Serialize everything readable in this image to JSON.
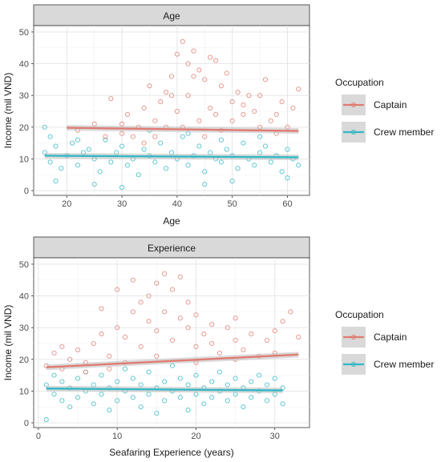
{
  "colors": {
    "captain": "#E07B72",
    "crew": "#35B7C5",
    "strip_fill": "#D9D9D9",
    "grid": "#EBEBEB"
  },
  "chart_data": [
    {
      "type": "scatter",
      "strip": "Age",
      "xlabel": "Age",
      "ylabel": "Income (mil VND)",
      "xlim": [
        14,
        64
      ],
      "ylim": [
        -1.5,
        52
      ],
      "xticks": [
        20,
        30,
        40,
        50,
        60
      ],
      "yticks": [
        0,
        10,
        20,
        30,
        40,
        50
      ],
      "legend": {
        "title": "Occupation",
        "entries": [
          "Captain",
          "Crew member"
        ],
        "placement": "right"
      },
      "series": [
        {
          "name": "Captain",
          "trend": {
            "x": [
              20,
              62
            ],
            "y": [
              19.8,
              18.8
            ]
          },
          "points": [
            [
              22,
              19
            ],
            [
              25,
              21
            ],
            [
              27,
              17
            ],
            [
              28,
              29
            ],
            [
              30,
              18
            ],
            [
              31,
              24
            ],
            [
              33,
              20
            ],
            [
              34,
              26
            ],
            [
              35,
              33
            ],
            [
              36,
              22
            ],
            [
              37,
              28
            ],
            [
              38,
              31
            ],
            [
              39,
              36
            ],
            [
              40,
              43
            ],
            [
              41,
              47
            ],
            [
              42,
              40
            ],
            [
              43,
              44
            ],
            [
              44,
              38
            ],
            [
              45,
              35
            ],
            [
              46,
              42
            ],
            [
              47,
              41
            ],
            [
              48,
              33
            ],
            [
              49,
              37
            ],
            [
              50,
              28
            ],
            [
              51,
              31
            ],
            [
              52,
              27
            ],
            [
              53,
              30
            ],
            [
              54,
              25
            ],
            [
              55,
              30
            ],
            [
              56,
              35
            ],
            [
              57,
              22
            ],
            [
              58,
              24
            ],
            [
              59,
              28
            ],
            [
              60,
              20
            ],
            [
              61,
              26
            ],
            [
              62,
              32
            ],
            [
              40,
              25
            ],
            [
              42,
              30
            ],
            [
              44,
              22
            ],
            [
              38,
              20
            ],
            [
              46,
              26
            ],
            [
              48,
              19
            ],
            [
              50,
              22
            ],
            [
              52,
              24
            ],
            [
              36,
              17
            ],
            [
              34,
              15
            ],
            [
              32,
              17
            ],
            [
              30,
              21
            ],
            [
              55,
              20
            ],
            [
              58,
              18
            ],
            [
              45,
              17
            ],
            [
              41,
              20
            ],
            [
              43,
              36
            ],
            [
              39,
              30
            ],
            [
              47,
              24
            ]
          ]
        },
        {
          "name": "Crew member",
          "trend": {
            "x": [
              16,
              62
            ],
            "y": [
              11.0,
              10.5
            ]
          },
          "points": [
            [
              16,
              12
            ],
            [
              17,
              9
            ],
            [
              18,
              14
            ],
            [
              19,
              7
            ],
            [
              20,
              11
            ],
            [
              21,
              15
            ],
            [
              22,
              8
            ],
            [
              23,
              12
            ],
            [
              24,
              13
            ],
            [
              25,
              10
            ],
            [
              26,
              6
            ],
            [
              27,
              16
            ],
            [
              28,
              9
            ],
            [
              29,
              12
            ],
            [
              30,
              14
            ],
            [
              31,
              8
            ],
            [
              32,
              10
            ],
            [
              33,
              5
            ],
            [
              34,
              13
            ],
            [
              35,
              11
            ],
            [
              36,
              9
            ],
            [
              37,
              15
            ],
            [
              38,
              7
            ],
            [
              39,
              12
            ],
            [
              40,
              10
            ],
            [
              41,
              17
            ],
            [
              42,
              8
            ],
            [
              43,
              11
            ],
            [
              44,
              14
            ],
            [
              45,
              6
            ],
            [
              46,
              12
            ],
            [
              47,
              10
            ],
            [
              48,
              9
            ],
            [
              49,
              13
            ],
            [
              50,
              11
            ],
            [
              51,
              7
            ],
            [
              52,
              15
            ],
            [
              53,
              10
            ],
            [
              54,
              8
            ],
            [
              55,
              12
            ],
            [
              56,
              14
            ],
            [
              57,
              9
            ],
            [
              58,
              11
            ],
            [
              59,
              6
            ],
            [
              60,
              13
            ],
            [
              61,
              10
            ],
            [
              62,
              8
            ],
            [
              18,
              3
            ],
            [
              25,
              2
            ],
            [
              30,
              1
            ],
            [
              45,
              2
            ],
            [
              50,
              3
            ],
            [
              60,
              4
            ],
            [
              35,
              19
            ],
            [
              42,
              18
            ],
            [
              48,
              16
            ],
            [
              16,
              20
            ],
            [
              17,
              17
            ],
            [
              22,
              16
            ],
            [
              55,
              17
            ]
          ]
        }
      ]
    },
    {
      "type": "scatter",
      "strip": "Experience",
      "xlabel": "Seafaring Experience (years)",
      "ylabel": "Income (mil VND)",
      "xlim": [
        -0.6,
        34.4
      ],
      "ylim": [
        -1.5,
        52
      ],
      "xticks": [
        0,
        10,
        20,
        30
      ],
      "yticks": [
        0,
        10,
        20,
        30,
        40,
        50
      ],
      "legend": {
        "title": "Occupation",
        "entries": [
          "Captain",
          "Crew member"
        ],
        "placement": "right"
      },
      "series": [
        {
          "name": "Captain",
          "trend": {
            "x": [
              1,
              33
            ],
            "y": [
              17.5,
              21.5
            ]
          },
          "points": [
            [
              1,
              18
            ],
            [
              2,
              22
            ],
            [
              3,
              17
            ],
            [
              4,
              20
            ],
            [
              5,
              23
            ],
            [
              6,
              19
            ],
            [
              7,
              25
            ],
            [
              8,
              28
            ],
            [
              8,
              36
            ],
            [
              9,
              21
            ],
            [
              10,
              30
            ],
            [
              10,
              42
            ],
            [
              11,
              27
            ],
            [
              12,
              35
            ],
            [
              12,
              45
            ],
            [
              13,
              24
            ],
            [
              13,
              38
            ],
            [
              14,
              32
            ],
            [
              14,
              40
            ],
            [
              15,
              29
            ],
            [
              15,
              44
            ],
            [
              16,
              47
            ],
            [
              16,
              35
            ],
            [
              17,
              26
            ],
            [
              17,
              42
            ],
            [
              18,
              33
            ],
            [
              18,
              46
            ],
            [
              19,
              30
            ],
            [
              19,
              38
            ],
            [
              20,
              24
            ],
            [
              20,
              34
            ],
            [
              21,
              28
            ],
            [
              22,
              25
            ],
            [
              22,
              31
            ],
            [
              23,
              22
            ],
            [
              24,
              30
            ],
            [
              25,
              26
            ],
            [
              25,
              33
            ],
            [
              26,
              23
            ],
            [
              27,
              28
            ],
            [
              28,
              21
            ],
            [
              29,
              26
            ],
            [
              30,
              29
            ],
            [
              31,
              32
            ],
            [
              32,
              35
            ],
            [
              33,
              27
            ],
            [
              6,
              16
            ],
            [
              11,
              19
            ],
            [
              15,
              21
            ],
            [
              20,
              19
            ],
            [
              25,
              20
            ],
            [
              30,
              22
            ],
            [
              3,
              24
            ],
            [
              9,
              17
            ]
          ]
        },
        {
          "name": "Crew member",
          "trend": {
            "x": [
              1,
              31
            ],
            "y": [
              10.8,
              10.2
            ]
          },
          "points": [
            [
              1,
              12
            ],
            [
              1,
              1
            ],
            [
              2,
              9
            ],
            [
              2,
              15
            ],
            [
              3,
              7
            ],
            [
              3,
              13
            ],
            [
              4,
              11
            ],
            [
              4,
              5
            ],
            [
              5,
              14
            ],
            [
              5,
              8
            ],
            [
              6,
              10
            ],
            [
              6,
              16
            ],
            [
              7,
              6
            ],
            [
              7,
              12
            ],
            [
              8,
              9
            ],
            [
              8,
              15
            ],
            [
              9,
              11
            ],
            [
              9,
              4
            ],
            [
              10,
              13
            ],
            [
              10,
              7
            ],
            [
              11,
              10
            ],
            [
              11,
              17
            ],
            [
              12,
              8
            ],
            [
              12,
              14
            ],
            [
              13,
              12
            ],
            [
              13,
              5
            ],
            [
              14,
              9
            ],
            [
              14,
              16
            ],
            [
              15,
              11
            ],
            [
              15,
              3
            ],
            [
              16,
              13
            ],
            [
              16,
              7
            ],
            [
              17,
              10
            ],
            [
              17,
              18
            ],
            [
              18,
              8
            ],
            [
              18,
              14
            ],
            [
              19,
              12
            ],
            [
              19,
              4
            ],
            [
              20,
              9
            ],
            [
              20,
              15
            ],
            [
              21,
              11
            ],
            [
              21,
              6
            ],
            [
              22,
              13
            ],
            [
              22,
              8
            ],
            [
              23,
              10
            ],
            [
              23,
              16
            ],
            [
              24,
              7
            ],
            [
              24,
              12
            ],
            [
              25,
              9
            ],
            [
              25,
              14
            ],
            [
              26,
              11
            ],
            [
              26,
              5
            ],
            [
              27,
              13
            ],
            [
              27,
              8
            ],
            [
              28,
              10
            ],
            [
              28,
              15
            ],
            [
              29,
              7
            ],
            [
              29,
              12
            ],
            [
              30,
              9
            ],
            [
              30,
              14
            ],
            [
              31,
              11
            ],
            [
              31,
              6
            ]
          ]
        }
      ]
    }
  ]
}
